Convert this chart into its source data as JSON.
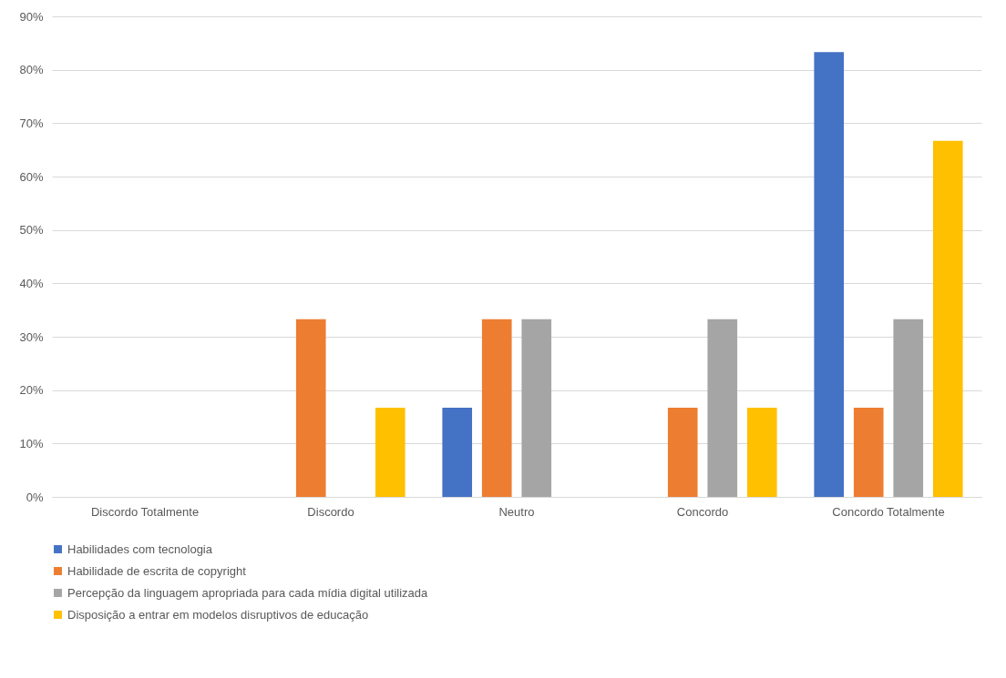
{
  "chart_data": {
    "type": "bar",
    "categories": [
      "Discordo Totalmente",
      "Discordo",
      "Neutro",
      "Concordo",
      "Concordo Totalmente"
    ],
    "series": [
      {
        "name": "Habilidades com tecnologia",
        "color": "#4472c4",
        "values": [
          0,
          0,
          16.7,
          0,
          83.3
        ]
      },
      {
        "name": "Habilidade de escrita de copyright",
        "color": "#ed7d31",
        "values": [
          0,
          33.3,
          33.3,
          16.7,
          16.7
        ]
      },
      {
        "name": "Percepção da linguagem apropriada para cada mídia digital utilizada",
        "color": "#a5a5a5",
        "values": [
          0,
          0,
          33.3,
          33.3,
          33.3
        ]
      },
      {
        "name": "Disposição a entrar em modelos disruptivos de educação",
        "color": "#ffc000",
        "values": [
          0,
          16.7,
          0,
          16.7,
          66.7
        ]
      }
    ],
    "ylim": [
      0,
      90
    ],
    "yticks": [
      {
        "value": 0,
        "label": "0%"
      },
      {
        "value": 10,
        "label": "10%"
      },
      {
        "value": 20,
        "label": "20%"
      },
      {
        "value": 30,
        "label": "30%"
      },
      {
        "value": 40,
        "label": "40%"
      },
      {
        "value": 50,
        "label": "50%"
      },
      {
        "value": 60,
        "label": "60%"
      },
      {
        "value": 70,
        "label": "70%"
      },
      {
        "value": 80,
        "label": "80%"
      },
      {
        "value": 90,
        "label": "90%"
      }
    ],
    "grid": "y",
    "legend": "bottom"
  }
}
